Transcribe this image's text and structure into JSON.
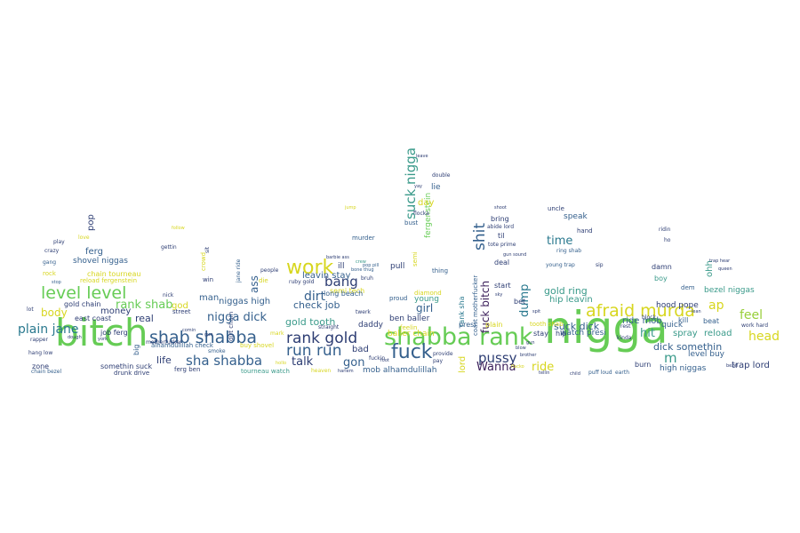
{
  "words": {
    "nigga": "nigga",
    "bitch": "bitch",
    "shabba_rank": "shabba rank",
    "shab_shabba": "shab shabba",
    "rank_gold": "rank gold",
    "afraid_murda": "afraid murda",
    "fuck": "fuck",
    "work": "work",
    "run_run": "run run",
    "level_level": "level level",
    "sha_shabba": "sha shabba",
    "plain_jane": "plain jane",
    "shit": "shit",
    "suck_nigga": "suck nigga",
    "bang": "bang",
    "talk": "talk",
    "pussy": "pussy",
    "wanna": "Wanna",
    "head": "head",
    "feel": "feel",
    "ap": "ap",
    "m": "m",
    "nigga_dick": "nigga dick",
    "rank_shab": "rank shab",
    "gold_tooth": "gold tooth",
    "dirt": "dirt",
    "gon": "gon",
    "girl": "girl",
    "time": "time",
    "hit": "hit",
    "ride": "ride",
    "body": "body",
    "ass": "ass",
    "check_job": "check job",
    "leavin_stay": "leavin stay",
    "gold_ring": "gold ring",
    "suck_dick": "suck dick",
    "dick_somethin": "dick somethin",
    "trap_lord": "trap lord",
    "niggas_high": "niggas high",
    "money": "money",
    "real": "real",
    "life": "life",
    "god": "god",
    "man": "man",
    "day": "day",
    "lord": "lord",
    "fuck_bitch": "fuck bitch",
    "dump": "dump",
    "ben_baller": "ben baller",
    "mob_alhamdulillah": "mob alhamdulillah",
    "baller_chain": "baller chain",
    "ride_mob": "ride mob",
    "hip_leavin": "hip leavin",
    "watch_presi": "watch presi",
    "high_niggas": "high niggas",
    "level_buy": "level buy",
    "spray": "spray",
    "reload": "reload",
    "bezel_niggas": "bezel niggas",
    "hood_pope": "hood pope",
    "quick": "quick",
    "young": "young",
    "bad": "bad",
    "daddy": "daddy",
    "pull": "pull",
    "lie": "lie",
    "speak": "speak",
    "bring": "bring",
    "deal": "deal",
    "start": "start",
    "bet": "bet",
    "til": "til",
    "stay": "stay",
    "hip": "hip",
    "burn": "burn",
    "boy": "boy",
    "beat": "beat",
    "kill": "kill",
    "dem": "dem",
    "damn": "damn",
    "ohh": "ohh",
    "hand": "hand",
    "uncle": "uncle",
    "tooth_shab": "tooth shab",
    "presi": "presi",
    "plain": "plain",
    "ferg": "ferg",
    "pop": "pop",
    "shovel_niggas": "shovel niggas",
    "chain_tourneau": "chain tourneau",
    "reload_fergenstein": "reload fergenstein",
    "gold_chain": "gold chain",
    "east_coast": "east coast",
    "job_ferg": "job ferg",
    "somethin_suck": "somethin suck",
    "drunk_drive": "drunk drive",
    "ferg_ben": "ferg ben",
    "tourneau_watch": "tourneau watch",
    "alhamdulillah_check": "alhamdulillah check",
    "buy_shovel": "buy shovel",
    "street": "street",
    "win": "win",
    "die": "die",
    "motherfucker": "motherfucker",
    "zone": "zone",
    "rock": "rock",
    "lot": "lot",
    "semi_tech": "semi tech",
    "long_beach": "long beach",
    "ill": "ill",
    "straight": "straight",
    "feelin": "feelin",
    "ring_shab": "ring shab",
    "young_trap": "young trap",
    "sip": "sip",
    "nick": "nick",
    "gettin": "gettin",
    "ruby_gold": "ruby gold",
    "chain_bezel": "chain bezel",
    "hang_low": "hang low",
    "rapper": "rapper",
    "stop": "stop",
    "bust": "bust",
    "semi": "semi",
    "fergenstein": "fergenstein",
    "rank_sha": "rank sha",
    "coast_motherfucker": "coast motherfucker",
    "thing": "thing",
    "diamond": "diamond",
    "proud": "proud",
    "murder": "murder",
    "bruh": "bruh",
    "twerk": "twerk",
    "abide_lord": "abide lord",
    "love": "love",
    "gang": "gang",
    "play": "play",
    "block": "block",
    "rest": "rest",
    "ridin": "ridin",
    "ho": "ho",
    "head_head": "head",
    "work_hard": "work hard",
    "puff_loud": "puff loud",
    "earth": "earth",
    "child": "child",
    "heaven": "heaven",
    "harlem": "harlem",
    "flacko": "flacko",
    "gun_sound": "gun sound",
    "tote_prime": "tote prime",
    "bezel": "bezel",
    "provide": "provide",
    "pay": "pay",
    "crazy": "crazy",
    "shoot": "shoot",
    "queen": "queen",
    "trap_hear": "trap hear",
    "lean": "lean",
    "flocka": "flocka",
    "double": "double",
    "yay": "yay",
    "leave": "leave",
    "brother": "brother",
    "blow": "blow",
    "ohh_ohh": "ohh",
    "tellin": "tellin",
    "kinda": "kinda",
    "sky": "sky",
    "spit": "spit",
    "smoke": "smoke",
    "gun": "gun",
    "people": "people",
    "mark": "mark",
    "hollo": "hollo",
    "foot": "foot",
    "york": "york",
    "comin": "comin",
    "follow": "follow",
    "big": "big",
    "dough": "dough",
    "crowd": "crowd",
    "dirt_chain": "dirt chain",
    "jane_ride": "jane ride",
    "fuckin": "fuckin",
    "pop_pill": "pop pill",
    "bone_thug": "bone thug",
    "barbie_ass": "barbie ass",
    "fried_chicken": "fried chicken",
    "jump": "jump",
    "crew": "crew",
    "sit": "sit"
  }
}
